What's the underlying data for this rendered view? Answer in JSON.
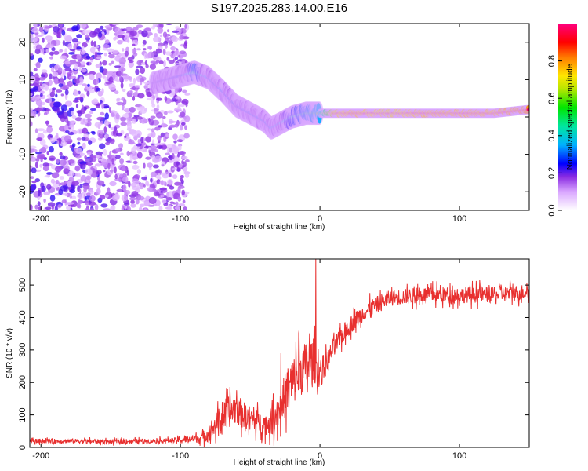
{
  "page_title": "S197.2025.283.14.00.E16",
  "chart_data": [
    {
      "type": "heatmap",
      "title": "S197.2025.283.14.00.E16",
      "xlabel": "Height of straight line (km)",
      "ylabel": "Frequency (Hz)",
      "xlim": [
        -208,
        150
      ],
      "ylim": [
        -25,
        25
      ],
      "xticks": [
        -200,
        -100,
        0,
        100
      ],
      "yticks": [
        -20,
        -10,
        0,
        10,
        20
      ],
      "colorbar": {
        "label": "Normalized spectral amplitude",
        "range": [
          0,
          1
        ],
        "ticks": [
          "0.0",
          "0.2",
          "0.4",
          "0.6",
          "0.8"
        ],
        "tick_values": [
          0.0,
          0.2,
          0.4,
          0.6,
          0.8
        ]
      },
      "ridge": {
        "x": [
          -120,
          -100,
          -90,
          -80,
          -70,
          -60,
          -50,
          -40,
          -35,
          -30,
          -20,
          -10,
          0,
          10,
          25,
          50,
          75,
          100,
          125,
          150
        ],
        "frequency": [
          9,
          11,
          12,
          10.5,
          7,
          3,
          1,
          -1,
          -3,
          -2,
          0,
          1,
          1,
          1,
          1,
          1,
          1,
          1,
          1,
          2
        ],
        "amplitude": [
          0.2,
          0.25,
          0.5,
          0.3,
          0.3,
          0.25,
          0.3,
          0.3,
          0.35,
          0.35,
          0.45,
          0.5,
          0.55,
          0.9,
          0.95,
          0.9,
          0.95,
          0.95,
          0.95,
          1.0
        ]
      },
      "noise_region_x": [
        -208,
        -95
      ]
    },
    {
      "type": "line",
      "title": "",
      "xlabel": "Height of straight line (km)",
      "ylabel": "SNR (10 * v/v)",
      "xlim": [
        -208,
        150
      ],
      "ylim": [
        0,
        580
      ],
      "xticks": [
        -200,
        -100,
        0,
        100
      ],
      "yticks": [
        0,
        100,
        200,
        300,
        400,
        500
      ],
      "color": "#e8302f",
      "series": [
        {
          "name": "SNR",
          "x": [
            -208,
            -180,
            -150,
            -120,
            -100,
            -85,
            -80,
            -75,
            -70,
            -65,
            -60,
            -55,
            -50,
            -45,
            -40,
            -35,
            -30,
            -25,
            -20,
            -15,
            -10,
            -5,
            0,
            5,
            10,
            20,
            30,
            40,
            50,
            75,
            100,
            125,
            150
          ],
          "mean": [
            20,
            20,
            18,
            20,
            22,
            30,
            45,
            70,
            90,
            110,
            120,
            100,
            90,
            80,
            70,
            80,
            110,
            160,
            200,
            230,
            250,
            270,
            230,
            260,
            310,
            370,
            410,
            440,
            460,
            470,
            470,
            470,
            480
          ],
          "noise": [
            10,
            10,
            10,
            10,
            12,
            20,
            40,
            50,
            60,
            70,
            70,
            60,
            55,
            50,
            45,
            60,
            80,
            100,
            110,
            110,
            110,
            100,
            70,
            50,
            45,
            40,
            40,
            35,
            35,
            35,
            35,
            35,
            35
          ]
        }
      ],
      "peaks": [
        {
          "x": -3,
          "y": 580
        },
        {
          "x": -15,
          "y": 360
        },
        {
          "x": -28,
          "y": 290
        }
      ]
    }
  ]
}
